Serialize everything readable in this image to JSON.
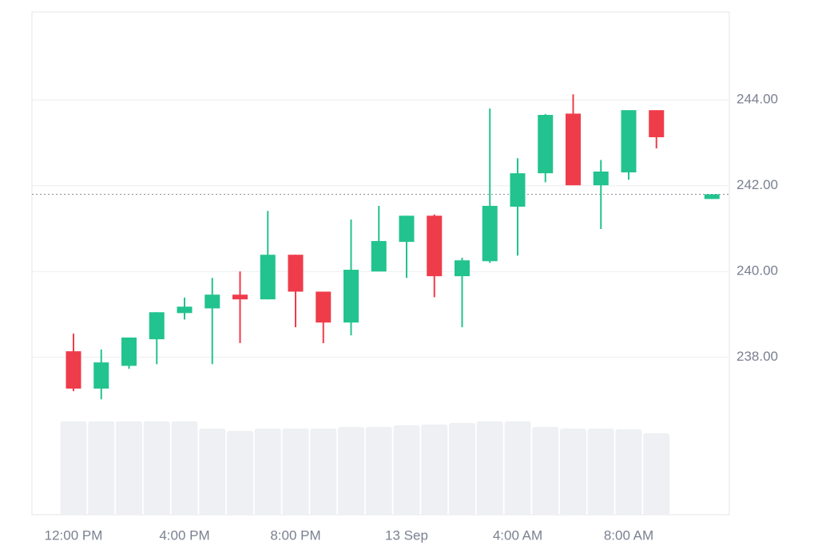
{
  "chart_data": {
    "type": "candlestick",
    "categories": [
      "12:00 PM",
      null,
      null,
      null,
      "4:00 PM",
      null,
      null,
      null,
      "8:00 PM",
      null,
      null,
      null,
      "13 Sep",
      null,
      null,
      null,
      "4:00 AM",
      null,
      null,
      null,
      "8:00 AM",
      null,
      null,
      null
    ],
    "open": [
      238.14,
      237.27,
      237.8,
      238.42,
      239.03,
      239.14,
      239.46,
      239.35,
      240.39,
      239.53,
      238.81,
      240.0,
      240.69,
      241.3,
      239.89,
      240.24,
      241.51,
      242.29,
      243.68,
      242.01,
      242.31,
      243.76,
      null,
      241.69
    ],
    "high": [
      238.55,
      238.18,
      238.46,
      239.05,
      239.39,
      239.85,
      240.0,
      241.41,
      240.39,
      239.53,
      241.21,
      241.53,
      241.3,
      241.33,
      240.32,
      243.8,
      242.64,
      243.67,
      244.13,
      242.6,
      243.76,
      243.76,
      null,
      241.8
    ],
    "low": [
      237.21,
      237.02,
      237.73,
      237.84,
      238.88,
      237.84,
      238.33,
      239.35,
      238.7,
      238.33,
      238.51,
      240.0,
      239.85,
      239.4,
      238.7,
      240.2,
      240.37,
      242.08,
      242.01,
      240.99,
      242.14,
      242.87,
      null,
      241.69
    ],
    "close": [
      237.27,
      237.88,
      238.46,
      239.05,
      239.18,
      239.46,
      239.35,
      240.39,
      239.53,
      238.81,
      240.04,
      240.71,
      241.3,
      239.89,
      240.26,
      241.53,
      242.29,
      243.65,
      242.01,
      242.33,
      243.76,
      243.13,
      null,
      241.8
    ],
    "volume": [
      117,
      117,
      117,
      117,
      117,
      108,
      105,
      108,
      108,
      108,
      110,
      110,
      112,
      113,
      115,
      117,
      117,
      110,
      108,
      108,
      107,
      102,
      null,
      null
    ],
    "up_color": "#22c38e",
    "down_color": "#ef3c4a",
    "volume_color": "#eef0f3",
    "price_line": 241.8,
    "ylim": [
      234.33,
      246.05
    ],
    "yticks": [
      {
        "value": 238,
        "label": "238.00"
      },
      {
        "value": 240,
        "label": "240.00"
      },
      {
        "value": 242,
        "label": "242.00"
      },
      {
        "value": 244,
        "label": "244.00"
      }
    ],
    "grid": true
  }
}
